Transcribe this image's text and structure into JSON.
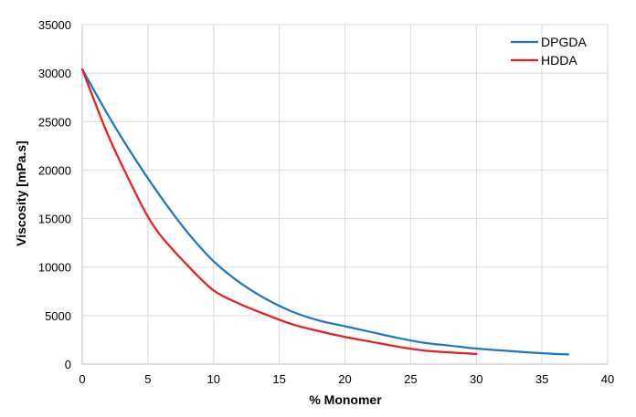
{
  "chart_data": {
    "type": "line",
    "xlabel": "% Monomer",
    "ylabel": "Viscosity [mPa.s]",
    "xlim": [
      0,
      40
    ],
    "ylim": [
      0,
      35000
    ],
    "x_ticks": [
      0,
      5,
      10,
      15,
      20,
      25,
      30,
      35,
      40
    ],
    "y_ticks": [
      0,
      5000,
      10000,
      15000,
      20000,
      25000,
      30000,
      35000
    ],
    "grid": true,
    "legend_position": "top-right",
    "series": [
      {
        "name": "DPGDA",
        "color": "#1f77c4",
        "points": [
          [
            0,
            30400
          ],
          [
            2,
            25600
          ],
          [
            4,
            21200
          ],
          [
            6,
            17200
          ],
          [
            8,
            13600
          ],
          [
            10,
            10600
          ],
          [
            12,
            8400
          ],
          [
            14,
            6700
          ],
          [
            16,
            5400
          ],
          [
            18,
            4500
          ],
          [
            20,
            3900
          ],
          [
            22,
            3300
          ],
          [
            24,
            2700
          ],
          [
            26,
            2200
          ],
          [
            28,
            1900
          ],
          [
            30,
            1600
          ],
          [
            32,
            1400
          ],
          [
            34,
            1200
          ],
          [
            36,
            1050
          ],
          [
            37,
            1000
          ]
        ]
      },
      {
        "name": "HDDA",
        "color": "#e81e1e",
        "points": [
          [
            0,
            30400
          ],
          [
            2,
            23500
          ],
          [
            4,
            17800
          ],
          [
            5,
            15200
          ],
          [
            6,
            13200
          ],
          [
            8,
            10200
          ],
          [
            10,
            7600
          ],
          [
            12,
            6200
          ],
          [
            14,
            5100
          ],
          [
            16,
            4100
          ],
          [
            18,
            3400
          ],
          [
            20,
            2800
          ],
          [
            22,
            2300
          ],
          [
            24,
            1800
          ],
          [
            26,
            1400
          ],
          [
            28,
            1200
          ],
          [
            30,
            1050
          ]
        ]
      }
    ]
  }
}
